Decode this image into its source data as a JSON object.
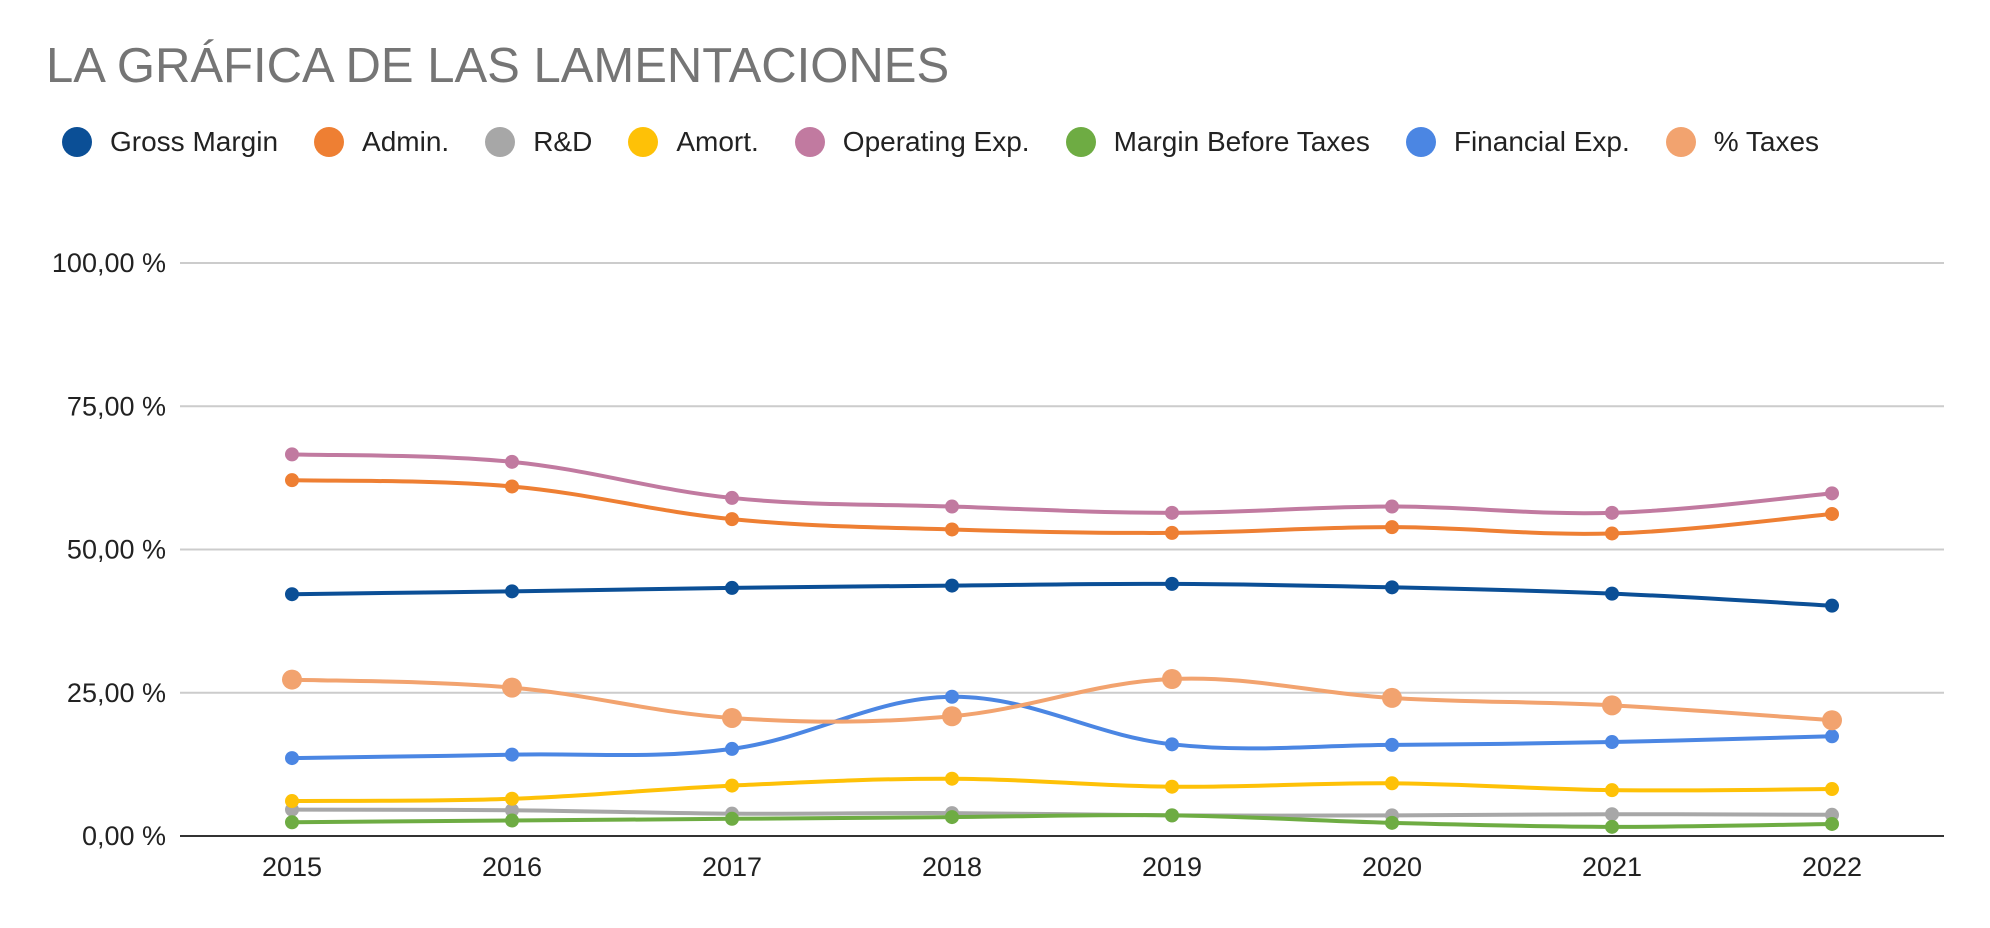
{
  "chart_data": {
    "type": "line",
    "title": "LA GRÁFICA DE LAS LAMENTACIONES",
    "xlabel": "",
    "ylabel": "",
    "categories": [
      "2015",
      "2016",
      "2017",
      "2018",
      "2019",
      "2020",
      "2021",
      "2022"
    ],
    "ylim": [
      0,
      100
    ],
    "yticks": [
      0,
      25,
      50,
      75,
      100
    ],
    "ytick_labels": [
      "0,00 %",
      "25,00 %",
      "50,00 %",
      "75,00 %",
      "100,00 %"
    ],
    "grid": true,
    "legend_position": "top",
    "series": [
      {
        "name": "Gross Margin",
        "color": "#0b4f96",
        "values": [
          42.2,
          42.7,
          43.3,
          43.7,
          44.0,
          43.4,
          42.3,
          40.2
        ]
      },
      {
        "name": "Admin.",
        "color": "#ee7f33",
        "values": [
          62.1,
          61.0,
          55.3,
          53.5,
          52.9,
          53.9,
          52.8,
          56.2
        ]
      },
      {
        "name": "R&D",
        "color": "#a7a7a7",
        "values": [
          4.6,
          4.5,
          3.9,
          4.0,
          3.6,
          3.6,
          3.8,
          3.7
        ]
      },
      {
        "name": "Amort.",
        "color": "#fec107",
        "values": [
          6.1,
          6.5,
          8.8,
          10.0,
          8.6,
          9.2,
          8.0,
          8.2
        ]
      },
      {
        "name": "Operating Exp.",
        "color": "#c17aa0",
        "values": [
          66.6,
          65.3,
          59.0,
          57.5,
          56.4,
          57.5,
          56.4,
          59.8
        ]
      },
      {
        "name": "Margin Before Taxes",
        "color": "#6eac43",
        "values": [
          2.4,
          2.7,
          3.0,
          3.3,
          3.6,
          2.3,
          1.6,
          2.1
        ]
      },
      {
        "name": "Financial Exp.",
        "color": "#4b86e3",
        "values": [
          13.6,
          14.2,
          15.2,
          24.3,
          16.0,
          15.9,
          16.4,
          17.4
        ]
      },
      {
        "name": "% Taxes",
        "color": "#f2a36f",
        "values": [
          27.3,
          25.9,
          20.6,
          20.9,
          27.4,
          24.1,
          22.8,
          20.2
        ]
      }
    ]
  }
}
